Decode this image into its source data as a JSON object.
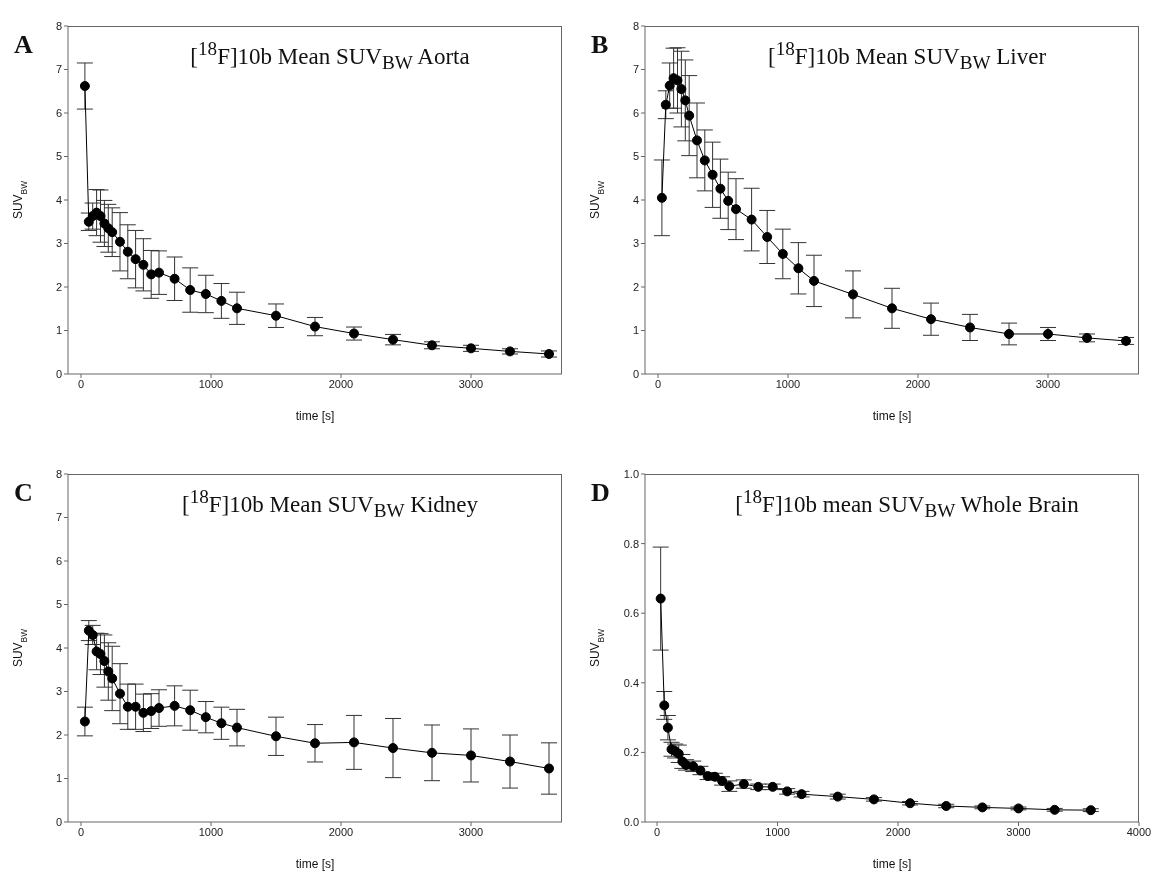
{
  "chart_data": [
    {
      "type": "line",
      "title": "[$^{18}$F]10b Mean SUV$_{BW}$ Aorta",
      "xlabel": "time [s]",
      "ylabel": "SUV$_{BW}$",
      "annotations": [
        "A"
      ],
      "color": "#000000",
      "marker": "circle",
      "line_style": "solid",
      "x": [
        30,
        60,
        90,
        120,
        150,
        180,
        210,
        240,
        300,
        360,
        420,
        480,
        540,
        600,
        720,
        840,
        960,
        1080,
        1200,
        1500,
        1800,
        2100,
        2400,
        2700,
        3000,
        3300,
        3600
      ],
      "values": [
        6.62,
        3.5,
        3.63,
        3.71,
        3.63,
        3.46,
        3.35,
        3.26,
        3.04,
        2.81,
        2.64,
        2.51,
        2.29,
        2.33,
        2.19,
        1.93,
        1.84,
        1.68,
        1.51,
        1.34,
        1.09,
        0.93,
        0.79,
        0.66,
        0.59,
        0.52,
        0.46
      ],
      "errors": [
        0.53,
        0.2,
        0.3,
        0.53,
        0.6,
        0.53,
        0.55,
        0.56,
        0.67,
        0.62,
        0.66,
        0.6,
        0.55,
        0.5,
        0.5,
        0.51,
        0.43,
        0.4,
        0.37,
        0.27,
        0.21,
        0.15,
        0.12,
        0.08,
        0.07,
        0.06,
        0.07
      ],
      "xlim": [
        -100,
        3700
      ],
      "xticks": [
        0,
        1000,
        2000,
        3000
      ],
      "ylim": [
        0,
        8
      ],
      "yticks": [
        0,
        1,
        2,
        3,
        4,
        5,
        6,
        7,
        8
      ]
    },
    {
      "type": "line",
      "title": "[$^{18}$F]10b Mean SUV$_{BW}$ Liver",
      "xlabel": "time [s]",
      "ylabel": "SUV$_{BW}$",
      "annotations": [
        "B"
      ],
      "color": "#000000",
      "marker": "circle",
      "line_style": "solid",
      "x": [
        30,
        60,
        90,
        120,
        150,
        180,
        210,
        240,
        300,
        360,
        420,
        480,
        540,
        600,
        720,
        840,
        960,
        1080,
        1200,
        1500,
        1800,
        2100,
        2400,
        2700,
        3000,
        3300,
        3600
      ],
      "values": [
        4.05,
        6.19,
        6.63,
        6.8,
        6.75,
        6.55,
        6.29,
        5.94,
        5.37,
        4.91,
        4.58,
        4.26,
        3.98,
        3.79,
        3.55,
        3.15,
        2.76,
        2.43,
        2.14,
        1.83,
        1.51,
        1.26,
        1.07,
        0.92,
        0.92,
        0.83,
        0.76
      ],
      "errors": [
        0.87,
        0.32,
        0.52,
        0.69,
        0.75,
        0.87,
        0.93,
        0.92,
        0.86,
        0.7,
        0.75,
        0.68,
        0.66,
        0.7,
        0.72,
        0.61,
        0.57,
        0.59,
        0.59,
        0.54,
        0.46,
        0.37,
        0.3,
        0.25,
        0.15,
        0.09,
        0.08
      ],
      "xlim": [
        -100,
        3700
      ],
      "xticks": [
        0,
        1000,
        2000,
        3000
      ],
      "ylim": [
        0,
        8
      ],
      "yticks": [
        0,
        1,
        2,
        3,
        4,
        5,
        6,
        7,
        8
      ]
    },
    {
      "type": "line",
      "title": "[$^{18}$F]10b Mean SUV$_{BW}$ Kidney",
      "xlabel": "time [s]",
      "ylabel": "SUV$_{BW}$",
      "annotations": [
        "C"
      ],
      "color": "#000000",
      "marker": "circle",
      "line_style": "solid",
      "x": [
        30,
        60,
        90,
        120,
        150,
        180,
        210,
        240,
        300,
        360,
        420,
        480,
        540,
        600,
        720,
        840,
        960,
        1080,
        1200,
        1500,
        1800,
        2100,
        2400,
        2700,
        3000,
        3300,
        3600
      ],
      "values": [
        2.31,
        4.4,
        4.3,
        3.92,
        3.86,
        3.7,
        3.46,
        3.3,
        2.95,
        2.65,
        2.65,
        2.51,
        2.55,
        2.62,
        2.67,
        2.57,
        2.41,
        2.27,
        2.17,
        1.97,
        1.81,
        1.83,
        1.7,
        1.59,
        1.53,
        1.39,
        1.23
      ],
      "errors": [
        0.33,
        0.23,
        0.22,
        0.42,
        0.47,
        0.6,
        0.66,
        0.74,
        0.69,
        0.52,
        0.52,
        0.43,
        0.4,
        0.42,
        0.46,
        0.46,
        0.36,
        0.37,
        0.42,
        0.44,
        0.43,
        0.62,
        0.68,
        0.64,
        0.61,
        0.61,
        0.59
      ],
      "xlim": [
        -100,
        3700
      ],
      "xticks": [
        0,
        1000,
        2000,
        3000
      ],
      "ylim": [
        0,
        8
      ],
      "yticks": [
        0,
        1,
        2,
        3,
        4,
        5,
        6,
        7,
        8
      ]
    },
    {
      "type": "line",
      "title": "[$^{18}$F]10b mean SUV$_{BW}$ Whole Brain",
      "xlabel": "time [s]",
      "ylabel": "SUV$_{BW}$",
      "annotations": [
        "D"
      ],
      "color": "#000000",
      "marker": "circle",
      "line_style": "solid",
      "x": [
        30,
        60,
        90,
        120,
        150,
        180,
        210,
        240,
        300,
        360,
        420,
        480,
        540,
        600,
        720,
        840,
        960,
        1080,
        1200,
        1500,
        1800,
        2100,
        2400,
        2700,
        3000,
        3300,
        3600
      ],
      "values": [
        0.642,
        0.335,
        0.271,
        0.209,
        0.204,
        0.196,
        0.174,
        0.164,
        0.16,
        0.148,
        0.132,
        0.13,
        0.118,
        0.103,
        0.109,
        0.101,
        0.101,
        0.088,
        0.08,
        0.073,
        0.065,
        0.054,
        0.046,
        0.042,
        0.039,
        0.035,
        0.034
      ],
      "errors": [
        0.148,
        0.04,
        0.035,
        0.02,
        0.02,
        0.025,
        0.02,
        0.015,
        0.015,
        0.012,
        0.01,
        0.01,
        0.012,
        0.015,
        0.012,
        0.008,
        0.008,
        0.008,
        0.008,
        0.007,
        0.005,
        0.005,
        0.005,
        0.004,
        0.004,
        0.004,
        0.004
      ],
      "xlim": [
        -100,
        4000
      ],
      "xticks": [
        0,
        1000,
        2000,
        3000,
        4000
      ],
      "ylim": [
        0,
        1
      ],
      "yticks": [
        {
          "value": 0,
          "label": "0.0"
        },
        0.2,
        0.4,
        0.6,
        0.8,
        {
          "value": 1,
          "label": "1.0"
        }
      ]
    }
  ]
}
